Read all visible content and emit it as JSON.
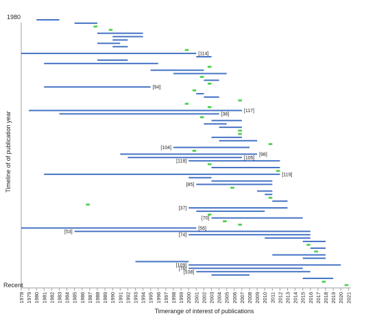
{
  "chart_data": {
    "type": "timeline",
    "xlabel": "Timerange of interest of publications",
    "ylabel": "Timeline of of publication year",
    "y_top_label": "1980",
    "y_bottom_label": "Recent",
    "x_ticks": [
      "1978",
      "1979",
      "1980",
      "1981",
      "1982",
      "1983",
      "1984",
      "1985",
      "1986",
      "1987",
      "1988",
      "1989",
      "1990",
      "1991",
      "1992",
      "1993",
      "1994",
      "1995",
      "1996",
      "1997",
      "1998",
      "1999",
      "2000",
      "2001",
      "2002",
      "2003",
      "2004",
      "2005",
      "2006",
      "2007",
      "2008",
      "2009",
      "2010",
      "2011",
      "2012",
      "2013",
      "2014",
      "2015",
      "2016",
      "2017",
      "2018",
      "2019",
      "2020",
      "2021"
    ],
    "legend": "none",
    "colors": {
      "range": "#4472c4",
      "point": "#4cd14c",
      "axis": "#9e9e9e"
    },
    "series": [
      {
        "start": 1980.0,
        "end": 1983.0
      },
      {
        "start": 1985.0,
        "end": 1988.0
      },
      {
        "start": 1987.5,
        "end": 1988.0,
        "kind": "point"
      },
      {
        "start": 1989.5,
        "end": 1990.0,
        "kind": "point"
      },
      {
        "start": 1988.0,
        "end": 1994.0
      },
      {
        "start": 1990.0,
        "end": 1994.0
      },
      {
        "start": 1990.0,
        "end": 1992.0
      },
      {
        "start": 1988.0,
        "end": 1991.0
      },
      {
        "start": 1990.0,
        "end": 1992.0
      },
      {
        "start": 1999.5,
        "end": 2000.0,
        "kind": "point"
      },
      {
        "start": 1978.0,
        "end": 2001.0,
        "label": "[114]"
      },
      {
        "start": 2001.0,
        "end": 2003.0
      },
      {
        "start": 1988.0,
        "end": 1992.0
      },
      {
        "start": 1981.0,
        "end": 1996.0
      },
      {
        "start": 2002.5,
        "end": 2003.0,
        "kind": "point"
      },
      {
        "start": 1995.0,
        "end": 2002.0
      },
      {
        "start": 1998.0,
        "end": 2005.0
      },
      {
        "start": 2001.5,
        "end": 2002.0,
        "kind": "point"
      },
      {
        "start": 2002.0,
        "end": 2004.0
      },
      {
        "start": 2002.5,
        "end": 2003.0,
        "kind": "point"
      },
      {
        "start": 1981.0,
        "end": 1995.0,
        "label": "[94]"
      },
      {
        "start": 2000.5,
        "end": 2001.0,
        "kind": "point"
      },
      {
        "start": 2001.0,
        "end": 2002.0
      },
      {
        "start": 2002.0,
        "end": 2004.0
      },
      {
        "start": 2006.5,
        "end": 2007.0,
        "kind": "point"
      },
      {
        "start": 1999.5,
        "end": 2000.0,
        "kind": "point"
      },
      {
        "start": 2002.5,
        "end": 2003.0,
        "kind": "point"
      },
      {
        "start": 1979.0,
        "end": 2007.0,
        "label": "[117]"
      },
      {
        "start": 1983.0,
        "end": 2004.0,
        "label": "[38]"
      },
      {
        "start": 2001.5,
        "end": 2002.0,
        "kind": "point"
      },
      {
        "start": 2003.0,
        "end": 2007.0
      },
      {
        "start": 2002.0,
        "end": 2005.0
      },
      {
        "start": 2004.0,
        "end": 2007.0
      },
      {
        "start": 2006.5,
        "end": 2007.0,
        "kind": "point"
      },
      {
        "start": 2006.5,
        "end": 2007.0,
        "kind": "point"
      },
      {
        "start": 2003.0,
        "end": 2007.0
      },
      {
        "start": 2004.0,
        "end": 2009.0
      },
      {
        "start": 2010.5,
        "end": 2011.0,
        "kind": "point"
      },
      {
        "start": 1998.0,
        "end": 2008.0,
        "label": "[104]"
      },
      {
        "start": 2000.5,
        "end": 2001.0,
        "kind": "point"
      },
      {
        "start": 1991.0,
        "end": 2009.0,
        "label": "[98]"
      },
      {
        "start": 1992.0,
        "end": 2007.0,
        "label": "[105]"
      },
      {
        "start": 2000.0,
        "end": 2012.0,
        "label": "[118]"
      },
      {
        "start": 2002.5,
        "end": 2003.0,
        "kind": "point"
      },
      {
        "start": 2003.0,
        "end": 2012.0
      },
      {
        "start": 2011.5,
        "end": 2012.0,
        "kind": "point"
      },
      {
        "start": 1981.0,
        "end": 2012.0,
        "label": "[119]"
      },
      {
        "start": 2000.0,
        "end": 2003.0
      },
      {
        "start": 2003.0,
        "end": 2011.0
      },
      {
        "start": 2001.0,
        "end": 2011.0,
        "label": "[85]"
      },
      {
        "start": 2005.5,
        "end": 2006.0,
        "kind": "point"
      },
      {
        "start": 2009.0,
        "end": 2011.0
      },
      {
        "start": 2010.0,
        "end": 2011.0
      },
      {
        "start": 2010.5,
        "end": 2011.0,
        "kind": "point"
      },
      {
        "start": 2011.0,
        "end": 2013.0
      },
      {
        "start": 1986.5,
        "end": 1987.0,
        "kind": "point"
      },
      {
        "start": 2000.0,
        "end": 2013.0,
        "label": "[37]"
      },
      {
        "start": 2001.0,
        "end": 2010.0
      },
      {
        "start": 2002.5,
        "end": 2003.0,
        "kind": "point"
      },
      {
        "start": 2003.0,
        "end": 2015.0,
        "label": "[70]"
      },
      {
        "start": 2004.5,
        "end": 2005.0,
        "kind": "point"
      },
      {
        "start": 2006.5,
        "end": 2007.0,
        "kind": "point"
      },
      {
        "start": 1978.0,
        "end": 2001.0,
        "label": "[56]"
      },
      {
        "start": 1985.0,
        "end": 2016.0,
        "label": "[53]"
      },
      {
        "start": 2000.0,
        "end": 2016.0,
        "label": "[74]"
      },
      {
        "start": 2010.0,
        "end": 2016.0
      },
      {
        "start": 2015.0,
        "end": 2018.0
      },
      {
        "start": 2015.5,
        "end": 2016.0,
        "kind": "point"
      },
      {
        "start": 2016.0,
        "end": 2018.0
      },
      {
        "start": 2016.5,
        "end": 2017.0,
        "kind": "point"
      },
      {
        "start": 2011.0,
        "end": 2018.0
      },
      {
        "start": 2015.0,
        "end": 2018.0
      },
      {
        "start": 1993.0,
        "end": 2000.0
      },
      {
        "start": 2000.0,
        "end": 2020.0,
        "label": "[109]"
      },
      {
        "start": 2000.0,
        "end": 2015.0,
        "label": "[76]"
      },
      {
        "start": 2001.0,
        "end": 2016.0,
        "label": "[108]"
      },
      {
        "start": 2003.0,
        "end": 2008.0
      },
      {
        "start": 2015.0,
        "end": 2019.0
      },
      {
        "start": 2017.5,
        "end": 2018.0,
        "kind": "point"
      },
      {
        "start": 2020.5,
        "end": 2021.0,
        "kind": "point"
      }
    ]
  }
}
